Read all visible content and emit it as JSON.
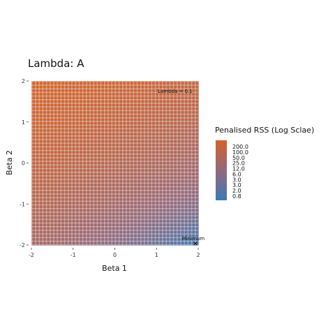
{
  "chart_data": {
    "type": "heatmap",
    "title": "Lambda: A",
    "xlabel": "Beta 1",
    "ylabel": "Beta 2",
    "xlim": [
      -2,
      2
    ],
    "ylim": [
      -2,
      2
    ],
    "x_ticks": [
      "-2",
      "-1",
      "0",
      "1",
      "2"
    ],
    "y_ticks": [
      "-2",
      "-1",
      "0",
      "1",
      "2"
    ],
    "color_scale": "log",
    "color_low": "#3a7ab8",
    "color_mid": "#94687a",
    "color_high": "#d2642a",
    "legend": {
      "title": "Penalised RSS (Log Sclae)",
      "placement": "right",
      "labels": [
        "200.0",
        "100.0",
        "50.0",
        "25.0",
        "12.0",
        "6.0",
        "3.0",
        "3.0",
        "2.0",
        "0.8"
      ]
    },
    "annotations": [
      {
        "text": "Lambda = 0.1",
        "x": 1.5,
        "y": 1.8
      },
      {
        "text": "Minimum",
        "x": 2,
        "y": -1.95
      }
    ],
    "minimum_point": {
      "x": 2,
      "y": -2,
      "marker": "x"
    }
  }
}
